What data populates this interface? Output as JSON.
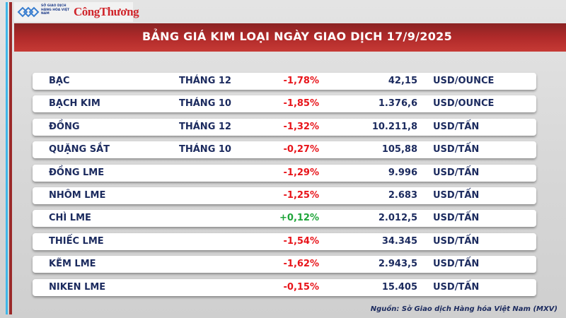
{
  "header": {
    "logo_org": "SỞ GIAO DỊCH HÀNG HÓA VIỆT NAM",
    "logo_brand": "CôngThương",
    "title": "BẢNG GIÁ KIM LOẠI NGÀY GIAO DỊCH 17/9/2025"
  },
  "colors": {
    "negative": "#e8141a",
    "positive": "#1fa53a",
    "text": "#1b2a5e",
    "header": "#b02a2a"
  },
  "rows": [
    {
      "name": "BẠC",
      "month": "THÁNG 12",
      "change": "-1,78%",
      "price": "42,15",
      "unit": "USD/OUNCE"
    },
    {
      "name": "BẠCH KIM",
      "month": "THÁNG 10",
      "change": "-1,85%",
      "price": "1.376,6",
      "unit": "USD/OUNCE"
    },
    {
      "name": "ĐỒNG",
      "month": "THÁNG 12",
      "change": "-1,32%",
      "price": "10.211,8",
      "unit": "USD/TẤN"
    },
    {
      "name": "QUẶNG SẮT",
      "month": "THÁNG 10",
      "change": "-0,27%",
      "price": "105,88",
      "unit": "USD/TẤN"
    },
    {
      "name": "ĐỒNG LME",
      "month": "",
      "change": "-1,29%",
      "price": "9.996",
      "unit": "USD/TẤN"
    },
    {
      "name": "NHÔM LME",
      "month": "",
      "change": "-1,25%",
      "price": "2.683",
      "unit": "USD/TẤN"
    },
    {
      "name": "CHÌ LME",
      "month": "",
      "change": "+0,12%",
      "price": "2.012,5",
      "unit": "USD/TẤN"
    },
    {
      "name": "THIẾC LME",
      "month": "",
      "change": "-1,54%",
      "price": "34.345",
      "unit": "USD/TẤN"
    },
    {
      "name": "KẼM LME",
      "month": "",
      "change": "-1,62%",
      "price": "2.943,5",
      "unit": "USD/TẤN"
    },
    {
      "name": "NIKEN LME",
      "month": "",
      "change": "-0,15%",
      "price": "15.405",
      "unit": "USD/TẤN"
    }
  ],
  "source": "Nguồn: Sở Giao dịch Hàng hóa Việt Nam (MXV)"
}
